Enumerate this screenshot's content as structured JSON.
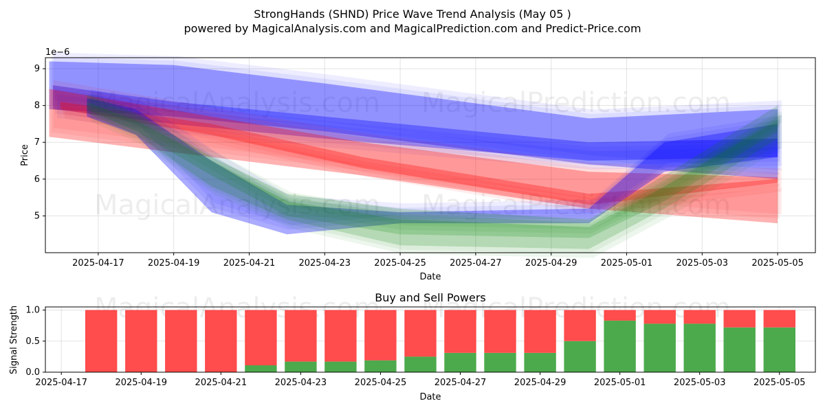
{
  "header": {
    "title": "StrongHands (SHND) Price Wave Trend Analysis (May 05 )",
    "subtitle": "powered by MagicalAnalysis.com and MagicalPrediction.com and Predict-Price.com"
  },
  "watermarks": [
    "MagicalAnalysis.com",
    "MagicalPrediction.com"
  ],
  "chart_data": [
    {
      "type": "area",
      "title": "",
      "xlabel": "Date",
      "ylabel": "Price",
      "y_offset_label": "1e−6",
      "ylim": [
        4.0,
        9.3
      ],
      "xlim": [
        "2025-04-15.6",
        "2025-05-06.0"
      ],
      "y_ticks": [
        5,
        6,
        7,
        8,
        9
      ],
      "x_ticks": [
        "2025-04-17",
        "2025-04-19",
        "2025-04-21",
        "2025-04-23",
        "2025-04-25",
        "2025-04-27",
        "2025-04-29",
        "2025-05-01",
        "2025-05-03",
        "2025-05-05"
      ],
      "grid": true,
      "colors": {
        "blue": "#0000ff",
        "red": "#ff0000",
        "green": "#008000"
      },
      "series": [
        {
          "color": "blue",
          "x": [
            "2025-04-15.7",
            "2025-04-19",
            "2025-04-23",
            "2025-04-30",
            "2025-05-05"
          ],
          "upper": [
            9.2,
            9.1,
            8.6,
            7.65,
            7.9
          ],
          "lower": [
            7.9,
            7.7,
            7.3,
            6.4,
            6.0
          ]
        },
        {
          "color": "blue",
          "x": [
            "2025-04-15.8",
            "2025-04-19",
            "2025-04-23",
            "2025-04-30",
            "2025-05-05"
          ],
          "upper": [
            8.55,
            8.1,
            7.7,
            7.0,
            7.1
          ],
          "lower": [
            7.9,
            7.5,
            7.1,
            6.5,
            6.6
          ]
        },
        {
          "color": "red",
          "x": [
            "2025-04-15.7",
            "2025-04-20",
            "2025-04-24",
            "2025-04-30",
            "2025-05-05"
          ],
          "upper": [
            8.45,
            7.7,
            7.0,
            6.2,
            6.05
          ],
          "lower": [
            7.15,
            6.6,
            6.1,
            5.2,
            4.8
          ]
        },
        {
          "color": "red",
          "x": [
            "2025-04-16",
            "2025-04-20",
            "2025-04-24",
            "2025-04-30",
            "2025-05-05"
          ],
          "upper": [
            8.1,
            7.5,
            6.6,
            5.6,
            6.0
          ],
          "lower": [
            7.9,
            7.2,
            6.3,
            5.3,
            5.9
          ]
        },
        {
          "color": "blue",
          "x": [
            "2025-04-16.7",
            "2025-04-18",
            "2025-04-20",
            "2025-04-22",
            "2025-04-25",
            "2025-04-30",
            "2025-05-02",
            "2025-05-05"
          ],
          "upper": [
            8.2,
            7.9,
            6.5,
            5.3,
            5.1,
            5.2,
            7.0,
            7.5
          ],
          "lower": [
            7.7,
            7.2,
            5.1,
            4.5,
            4.8,
            4.8,
            6.2,
            6.6
          ]
        },
        {
          "color": "green",
          "x": [
            "2025-04-16.7",
            "2025-04-18",
            "2025-04-20",
            "2025-04-22",
            "2025-04-25",
            "2025-04-30",
            "2025-05-02",
            "2025-05-05"
          ],
          "upper": [
            8.3,
            7.8,
            6.6,
            5.6,
            5.2,
            4.9,
            6.1,
            8.0
          ],
          "lower": [
            7.8,
            7.2,
            5.8,
            4.9,
            4.2,
            4.1,
            5.2,
            7.1
          ]
        },
        {
          "color": "green",
          "x": [
            "2025-04-16.7",
            "2025-04-18",
            "2025-04-20",
            "2025-04-22",
            "2025-04-25",
            "2025-04-30",
            "2025-05-02",
            "2025-05-05"
          ],
          "upper": [
            8.1,
            7.6,
            6.5,
            5.4,
            4.9,
            4.7,
            5.8,
            7.6
          ],
          "lower": [
            7.9,
            7.3,
            6.1,
            5.0,
            4.5,
            4.4,
            5.4,
            7.3
          ]
        }
      ]
    },
    {
      "type": "bar",
      "title": "Buy and Sell Powers",
      "xlabel": "Date",
      "ylabel": "Signal Strength",
      "ylim": [
        0,
        1.05
      ],
      "y_ticks": [
        "0.0",
        "0.5",
        "1.0"
      ],
      "x_ticks": [
        "2025-04-17",
        "2025-04-19",
        "2025-04-21",
        "2025-04-23",
        "2025-04-25",
        "2025-04-27",
        "2025-04-29",
        "2025-05-01",
        "2025-05-03",
        "2025-05-05"
      ],
      "xlim": [
        "2025-04-16.6",
        "2025-05-05.9"
      ],
      "grid": true,
      "colors": {
        "buy": "#4caa4c",
        "sell": "#ff4c4c"
      },
      "categories": [
        "2025-04-18",
        "2025-04-19",
        "2025-04-20",
        "2025-04-21",
        "2025-04-22",
        "2025-04-23",
        "2025-04-24",
        "2025-04-25",
        "2025-04-26",
        "2025-04-27",
        "2025-04-28",
        "2025-04-29",
        "2025-04-30",
        "2025-05-01",
        "2025-05-02",
        "2025-05-03",
        "2025-05-04",
        "2025-05-05"
      ],
      "series": [
        {
          "values": [
            0,
            0,
            0,
            0,
            0.11,
            0.17,
            0.17,
            0.19,
            0.25,
            0.31,
            0.31,
            0.31,
            0.5,
            0.83,
            0.78,
            0.78,
            0.72,
            0.72
          ]
        },
        {
          "values": [
            1,
            1,
            1,
            1,
            0.89,
            0.83,
            0.83,
            0.81,
            0.75,
            0.69,
            0.69,
            0.69,
            0.5,
            0.17,
            0.22,
            0.22,
            0.28,
            0.28
          ]
        }
      ]
    }
  ]
}
